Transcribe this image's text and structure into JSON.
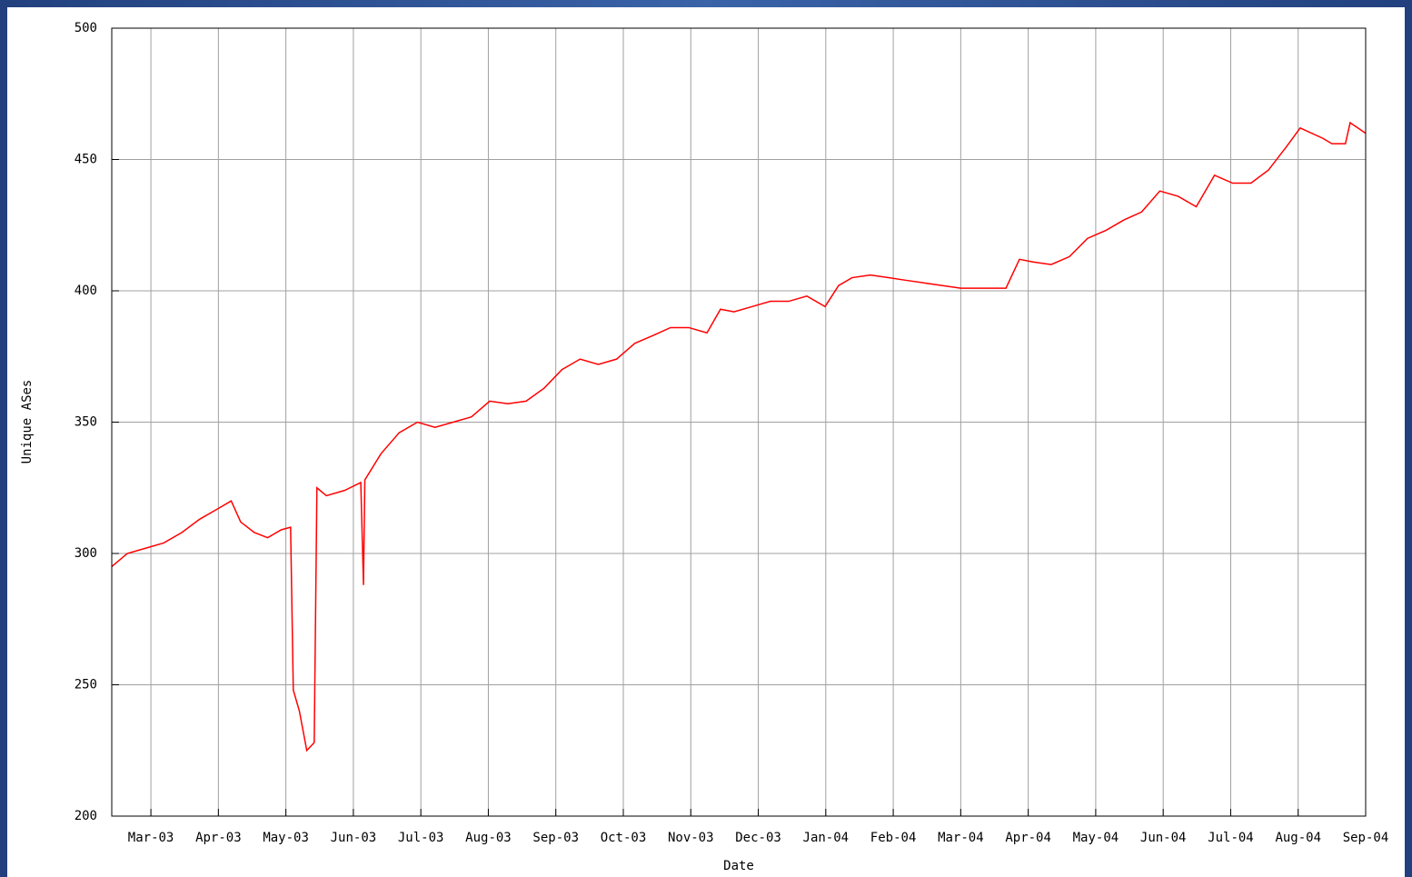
{
  "chart_data": {
    "type": "line",
    "x_label": "Date",
    "y_label": "Unique ASes",
    "xlim": [
      -0.58,
      18
    ],
    "ylim": [
      200,
      500
    ],
    "xticks": [
      {
        "value": 0,
        "label": "Mar-03"
      },
      {
        "value": 1,
        "label": "Apr-03"
      },
      {
        "value": 2,
        "label": "May-03"
      },
      {
        "value": 3,
        "label": "Jun-03"
      },
      {
        "value": 4,
        "label": "Jul-03"
      },
      {
        "value": 5,
        "label": "Aug-03"
      },
      {
        "value": 6,
        "label": "Sep-03"
      },
      {
        "value": 7,
        "label": "Oct-03"
      },
      {
        "value": 8,
        "label": "Nov-03"
      },
      {
        "value": 9,
        "label": "Dec-03"
      },
      {
        "value": 10,
        "label": "Jan-04"
      },
      {
        "value": 11,
        "label": "Feb-04"
      },
      {
        "value": 12,
        "label": "Mar-04"
      },
      {
        "value": 13,
        "label": "Apr-04"
      },
      {
        "value": 14,
        "label": "May-04"
      },
      {
        "value": 15,
        "label": "Jun-04"
      },
      {
        "value": 16,
        "label": "Jul-04"
      },
      {
        "value": 17,
        "label": "Aug-04"
      },
      {
        "value": 18,
        "label": "Sep-04"
      }
    ],
    "yticks": [
      200,
      250,
      300,
      350,
      400,
      450,
      500
    ],
    "grid": true,
    "series": [
      {
        "color": "#ff0000",
        "x": [
          -0.58,
          -0.35,
          -0.08,
          0.19,
          0.46,
          0.72,
          0.99,
          1.19,
          1.33,
          1.53,
          1.73,
          1.93,
          2.07,
          2.11,
          2.2,
          2.31,
          2.42,
          2.46,
          2.6,
          2.87,
          3.11,
          3.15,
          3.17,
          3.41,
          3.68,
          3.95,
          4.21,
          4.48,
          4.75,
          5.02,
          5.29,
          5.56,
          5.83,
          6.09,
          6.36,
          6.63,
          6.9,
          7.17,
          7.44,
          7.7,
          7.97,
          8.24,
          8.44,
          8.64,
          8.91,
          9.18,
          9.45,
          9.72,
          9.99,
          10.19,
          10.39,
          10.66,
          10.93,
          11.19,
          11.46,
          11.73,
          12.0,
          12.27,
          12.67,
          12.87,
          13.07,
          13.34,
          13.61,
          13.88,
          14.15,
          14.42,
          14.68,
          14.95,
          15.22,
          15.49,
          15.76,
          16.03,
          16.3,
          16.56,
          16.83,
          17.03,
          17.37,
          17.5,
          17.7,
          17.77,
          18
        ],
        "values": [
          295,
          300,
          302,
          304,
          308,
          313,
          317,
          320,
          312,
          308,
          306,
          309,
          310,
          248,
          240,
          225,
          228,
          325,
          322,
          324,
          327,
          288,
          328,
          338,
          346,
          350,
          348,
          350,
          352,
          358,
          357,
          358,
          363,
          370,
          374,
          372,
          374,
          380,
          383,
          386,
          386,
          384,
          393,
          392,
          394,
          396,
          396,
          398,
          394,
          402,
          405,
          406,
          405,
          404,
          403,
          402,
          401,
          401,
          401,
          412,
          411,
          410,
          413,
          420,
          423,
          427,
          430,
          438,
          436,
          432,
          444,
          441,
          441,
          446,
          455,
          462,
          458,
          456,
          456,
          464,
          460
        ]
      }
    ]
  }
}
